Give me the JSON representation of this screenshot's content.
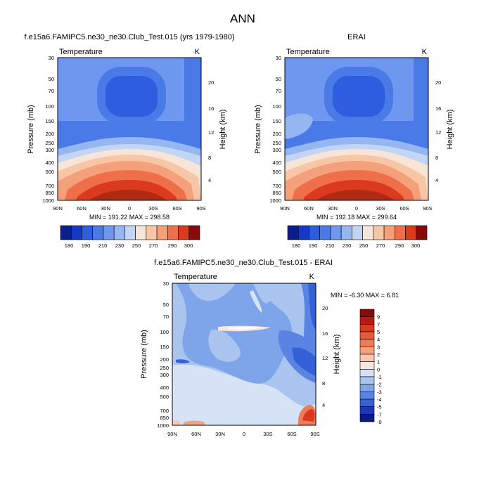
{
  "page_title": "ANN",
  "chart_data": [
    {
      "type": "heatmap",
      "title": "f.e15a6.FAMIPC5.ne30_ne30.Club_Test.015 (yrs 1979-1980)",
      "subtitle_left": "Temperature",
      "subtitle_right": "K",
      "ylabel": "Pressure (mb)",
      "ylabel_right": "Height (km)",
      "x_ticks": [
        "90N",
        "60N",
        "30N",
        "0",
        "30S",
        "60S",
        "90S"
      ],
      "y_ticks": [
        "30",
        "50",
        "70",
        "100",
        "150",
        "200",
        "250",
        "300",
        "400",
        "500",
        "700",
        "850",
        "1000"
      ],
      "y_ticks_right": [
        "20",
        "16",
        "12",
        "8",
        "4"
      ],
      "min": 191.22,
      "max": 298.58,
      "minmax_label": "MIN = 191.22  MAX = 298.58",
      "colorbar_labels": [
        "180",
        "190",
        "210",
        "230",
        "250",
        "270",
        "290",
        "300"
      ],
      "levels": [
        180,
        190,
        200,
        210,
        220,
        230,
        240,
        250,
        260,
        270,
        280,
        290,
        300
      ]
    },
    {
      "type": "heatmap",
      "title": "ERAI",
      "subtitle_left": "Temperature",
      "subtitle_right": "K",
      "ylabel": "Pressure (mb)",
      "ylabel_right": "Height (km)",
      "x_ticks": [
        "90N",
        "60N",
        "30N",
        "0",
        "30S",
        "60S",
        "90S"
      ],
      "y_ticks": [
        "30",
        "50",
        "70",
        "100",
        "150",
        "200",
        "250",
        "300",
        "400",
        "500",
        "700",
        "850",
        "1000"
      ],
      "y_ticks_right": [
        "20",
        "16",
        "12",
        "8",
        "4"
      ],
      "min": 192.18,
      "max": 299.64,
      "minmax_label": "MIN = 192.18  MAX = 299.64",
      "colorbar_labels": [
        "180",
        "190",
        "210",
        "230",
        "250",
        "270",
        "290",
        "300"
      ],
      "levels": [
        180,
        190,
        200,
        210,
        220,
        230,
        240,
        250,
        260,
        270,
        280,
        290,
        300
      ]
    },
    {
      "type": "heatmap",
      "title": "f.e15a6.FAMIPC5.ne30_ne30.Club_Test.015 - ERAI",
      "subtitle_left": "Temperature",
      "subtitle_right": "K",
      "ylabel": "Pressure (mb)",
      "ylabel_right": "Height (km)",
      "x_ticks": [
        "90N",
        "60N",
        "30N",
        "0",
        "30S",
        "60S",
        "90S"
      ],
      "y_ticks": [
        "30",
        "50",
        "70",
        "100",
        "150",
        "200",
        "250",
        "300",
        "400",
        "500",
        "700",
        "850",
        "1000"
      ],
      "y_ticks_right": [
        "20",
        "16",
        "12",
        "8",
        "4"
      ],
      "min": -6.3,
      "max": 6.81,
      "minmax_label": "MIN = -6.30  MAX =  6.81",
      "colorbar_labels": [
        "9",
        "7",
        "5",
        "4",
        "3",
        "2",
        "1",
        "0",
        "-1",
        "-2",
        "-3",
        "-4",
        "-5",
        "-7",
        "-9"
      ]
    }
  ],
  "colors": {
    "abs_scale": [
      "#0a1e8c",
      "#1638c8",
      "#2f5de0",
      "#4a7ae8",
      "#6e98ef",
      "#96b6f2",
      "#c2d5f5",
      "#f7e6d8",
      "#f6c6a6",
      "#f4a07a",
      "#ee6f4a",
      "#dc3a1e",
      "#8a0a0a"
    ],
    "diff_scale": [
      "#8a0a0a",
      "#b81a12",
      "#d83a20",
      "#e65a38",
      "#ee7c58",
      "#f4a282",
      "#f8c8b0",
      "#f8e6dc",
      "#d6e2f6",
      "#aac4f0",
      "#7ea4ea",
      "#5a84e4",
      "#3460d8",
      "#1a38b8",
      "#0c1a86"
    ]
  }
}
